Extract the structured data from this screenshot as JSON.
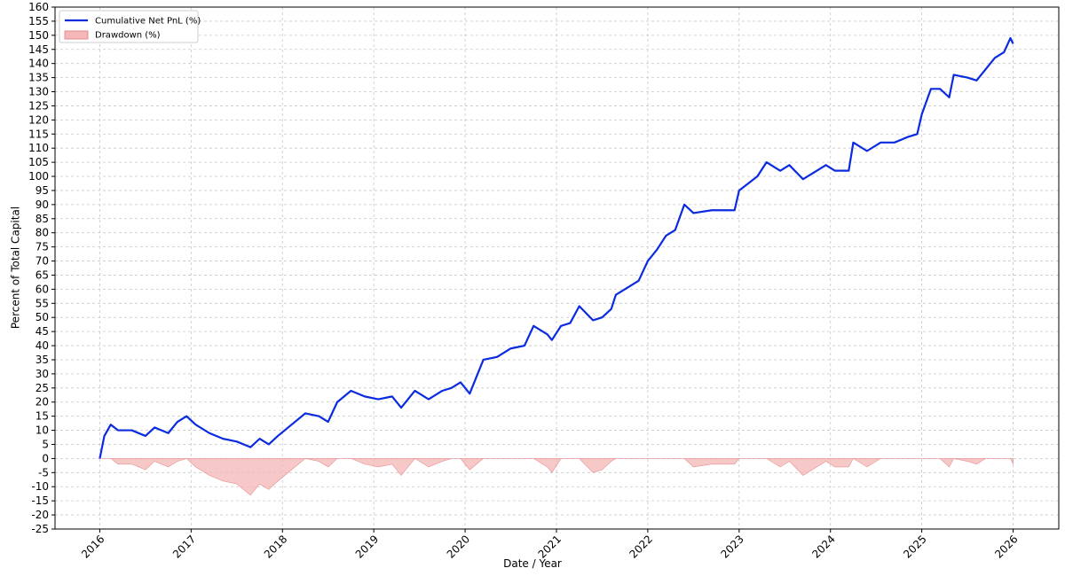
{
  "chart_data": {
    "type": "line",
    "x_label": "Date / Year",
    "y_label": "Percent of Total Capital",
    "x": [
      2016.0,
      2016.05,
      2016.12,
      2016.2,
      2016.35,
      2016.5,
      2016.6,
      2016.75,
      2016.85,
      2016.95,
      2017.05,
      2017.2,
      2017.35,
      2017.5,
      2017.65,
      2017.75,
      2017.85,
      2017.95,
      2018.1,
      2018.25,
      2018.4,
      2018.5,
      2018.6,
      2018.75,
      2018.9,
      2019.05,
      2019.2,
      2019.3,
      2019.45,
      2019.6,
      2019.75,
      2019.85,
      2019.95,
      2020.05,
      2020.2,
      2020.35,
      2020.5,
      2020.65,
      2020.75,
      2020.9,
      2020.95,
      2021.05,
      2021.15,
      2021.25,
      2021.4,
      2021.5,
      2021.6,
      2021.65,
      2021.8,
      2021.9,
      2022.0,
      2022.1,
      2022.2,
      2022.3,
      2022.4,
      2022.5,
      2022.7,
      2022.95,
      2023.0,
      2023.2,
      2023.3,
      2023.45,
      2023.55,
      2023.7,
      2023.85,
      2023.95,
      2024.05,
      2024.2,
      2024.25,
      2024.4,
      2024.55,
      2024.7,
      2024.85,
      2024.95,
      2025.0,
      2025.1,
      2025.2,
      2025.3,
      2025.35,
      2025.5,
      2025.6,
      2025.7,
      2025.8,
      2025.9,
      2025.97,
      2026.0
    ],
    "series": [
      {
        "name": "Cumulative Net PnL (%)",
        "color": "#0a2be0",
        "kind": "line",
        "values": [
          0,
          8,
          12,
          10,
          10,
          8,
          11,
          9,
          13,
          15,
          12,
          9,
          7,
          6,
          4,
          7,
          5,
          8,
          12,
          16,
          15,
          13,
          20,
          24,
          22,
          21,
          22,
          18,
          24,
          21,
          24,
          25,
          27,
          23,
          35,
          36,
          39,
          40,
          47,
          44,
          42,
          47,
          48,
          54,
          49,
          50,
          53,
          58,
          61,
          63,
          70,
          74,
          79,
          81,
          90,
          87,
          88,
          88,
          95,
          100,
          105,
          102,
          104,
          99,
          102,
          104,
          102,
          102,
          112,
          109,
          112,
          112,
          114,
          115,
          122,
          131,
          131,
          128,
          136,
          135,
          134,
          138,
          142,
          144,
          149,
          147
        ]
      },
      {
        "name": "Drawdown (%)",
        "color": "#f4b6b6",
        "kind": "area",
        "values": [
          0,
          0,
          0,
          -2,
          -2,
          -4,
          -1,
          -3,
          -1,
          0,
          -3,
          -6,
          -8,
          -9,
          -13,
          -9,
          -11,
          -8,
          -4,
          0,
          -1,
          -3,
          0,
          0,
          -2,
          -3,
          -2,
          -6,
          0,
          -3,
          -1,
          0,
          0,
          -4,
          0,
          0,
          0,
          0,
          0,
          -3,
          -5,
          0,
          0,
          0,
          -5,
          -4,
          -1,
          0,
          0,
          0,
          0,
          0,
          0,
          0,
          0,
          -3,
          -2,
          -2,
          0,
          0,
          0,
          -3,
          -1,
          -6,
          -3,
          -1,
          -3,
          -3,
          0,
          -3,
          0,
          0,
          0,
          0,
          0,
          0,
          0,
          -3,
          0,
          -1,
          -2,
          0,
          0,
          0,
          0,
          -2
        ]
      }
    ],
    "xlim": [
      2015.51,
      2026.5
    ],
    "xticks": [
      2016,
      2017,
      2018,
      2019,
      2020,
      2021,
      2022,
      2023,
      2024,
      2025,
      2026
    ],
    "ylim": [
      -25,
      160
    ],
    "yticks": [
      -25,
      -20,
      -15,
      -10,
      -5,
      0,
      5,
      10,
      15,
      20,
      25,
      30,
      35,
      40,
      45,
      50,
      55,
      60,
      65,
      70,
      75,
      80,
      85,
      90,
      95,
      100,
      105,
      110,
      115,
      120,
      125,
      130,
      135,
      140,
      145,
      150,
      155,
      160
    ],
    "grid": true,
    "legend": "upper-left"
  }
}
